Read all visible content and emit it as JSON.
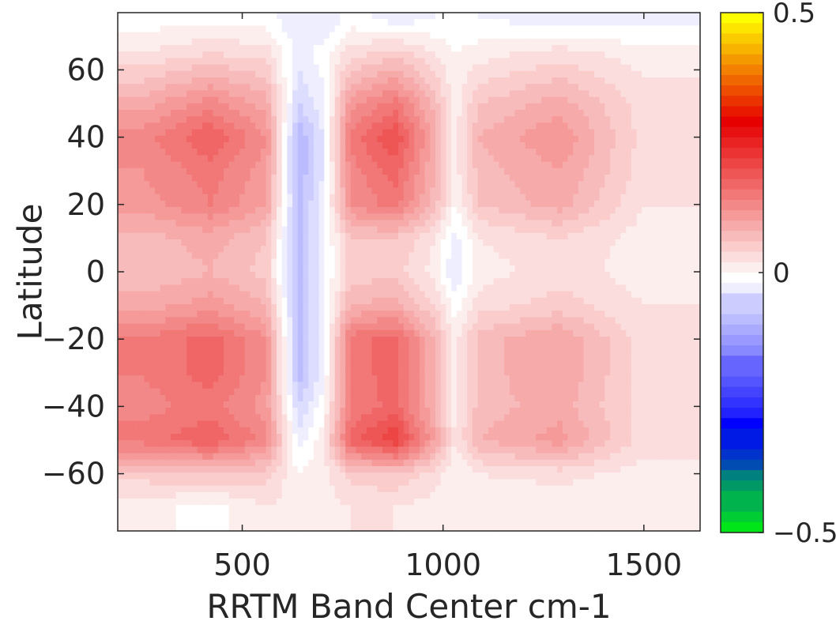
{
  "chart_data": {
    "type": "heatmap",
    "title": "",
    "xlabel": "RRTM Band Center cm-1",
    "ylabel": "Latitude",
    "xlim": [
      190,
      1640
    ],
    "ylim": [
      -77,
      77
    ],
    "x_ticks": [
      500,
      1000,
      1500
    ],
    "y_ticks": [
      60,
      40,
      20,
      0,
      -20,
      -40,
      -60
    ],
    "colorbar": {
      "range": [
        -0.5,
        0.5
      ],
      "tick_labels": [
        "0.5",
        "0",
        "-0.5"
      ],
      "tick_values": [
        0.5,
        0,
        -0.5
      ],
      "colormap": "green-blue-white-red-yellow",
      "levels": 50
    },
    "x_band_centers": [
      250,
      420,
      560,
      640,
      700,
      770,
      880,
      980,
      1030,
      1090,
      1290,
      1500
    ],
    "latitudes": [
      75,
      65,
      50,
      40,
      30,
      20,
      10,
      0,
      -10,
      -20,
      -30,
      -40,
      -50,
      -60,
      -70
    ],
    "values": [
      [
        0.0,
        0.0,
        0.0,
        -0.03,
        -0.03,
        0.0,
        -0.02,
        -0.01,
        -0.01,
        -0.01,
        -0.02,
        -0.02
      ],
      [
        0.03,
        0.05,
        0.04,
        -0.02,
        0.0,
        0.04,
        0.06,
        0.03,
        0.01,
        0.02,
        0.04,
        0.02
      ],
      [
        0.1,
        0.14,
        0.1,
        -0.05,
        -0.02,
        0.12,
        0.16,
        0.08,
        0.02,
        0.07,
        0.1,
        0.04
      ],
      [
        0.14,
        0.19,
        0.13,
        -0.09,
        -0.03,
        0.16,
        0.21,
        0.1,
        0.02,
        0.09,
        0.13,
        0.04
      ],
      [
        0.13,
        0.16,
        0.12,
        -0.09,
        -0.03,
        0.14,
        0.18,
        0.09,
        0.02,
        0.08,
        0.11,
        0.04
      ],
      [
        0.12,
        0.15,
        0.11,
        -0.08,
        -0.02,
        0.13,
        0.16,
        0.08,
        0.01,
        0.07,
        0.1,
        0.03
      ],
      [
        0.08,
        0.1,
        0.07,
        -0.08,
        -0.02,
        0.07,
        0.07,
        0.03,
        -0.02,
        0.03,
        0.05,
        0.02
      ],
      [
        0.07,
        0.09,
        0.06,
        -0.08,
        -0.02,
        0.06,
        0.06,
        0.02,
        -0.03,
        0.02,
        0.04,
        0.02
      ],
      [
        0.1,
        0.12,
        0.09,
        -0.08,
        -0.02,
        0.09,
        0.1,
        0.05,
        0.0,
        0.04,
        0.06,
        0.03
      ],
      [
        0.15,
        0.18,
        0.13,
        -0.08,
        -0.02,
        0.16,
        0.18,
        0.09,
        0.02,
        0.08,
        0.11,
        0.04
      ],
      [
        0.15,
        0.18,
        0.13,
        -0.08,
        -0.02,
        0.16,
        0.18,
        0.09,
        0.02,
        0.08,
        0.11,
        0.04
      ],
      [
        0.14,
        0.16,
        0.12,
        -0.05,
        0.0,
        0.15,
        0.18,
        0.09,
        0.02,
        0.08,
        0.1,
        0.04
      ],
      [
        0.16,
        0.19,
        0.14,
        -0.02,
        0.02,
        0.18,
        0.23,
        0.11,
        0.03,
        0.09,
        0.12,
        0.04
      ],
      [
        0.06,
        0.07,
        0.06,
        0.01,
        0.02,
        0.06,
        0.07,
        0.04,
        0.01,
        0.03,
        0.04,
        0.02
      ],
      [
        0.02,
        0.0,
        0.03,
        0.02,
        0.02,
        0.03,
        0.03,
        0.02,
        0.01,
        0.01,
        0.01,
        0.01
      ]
    ]
  }
}
